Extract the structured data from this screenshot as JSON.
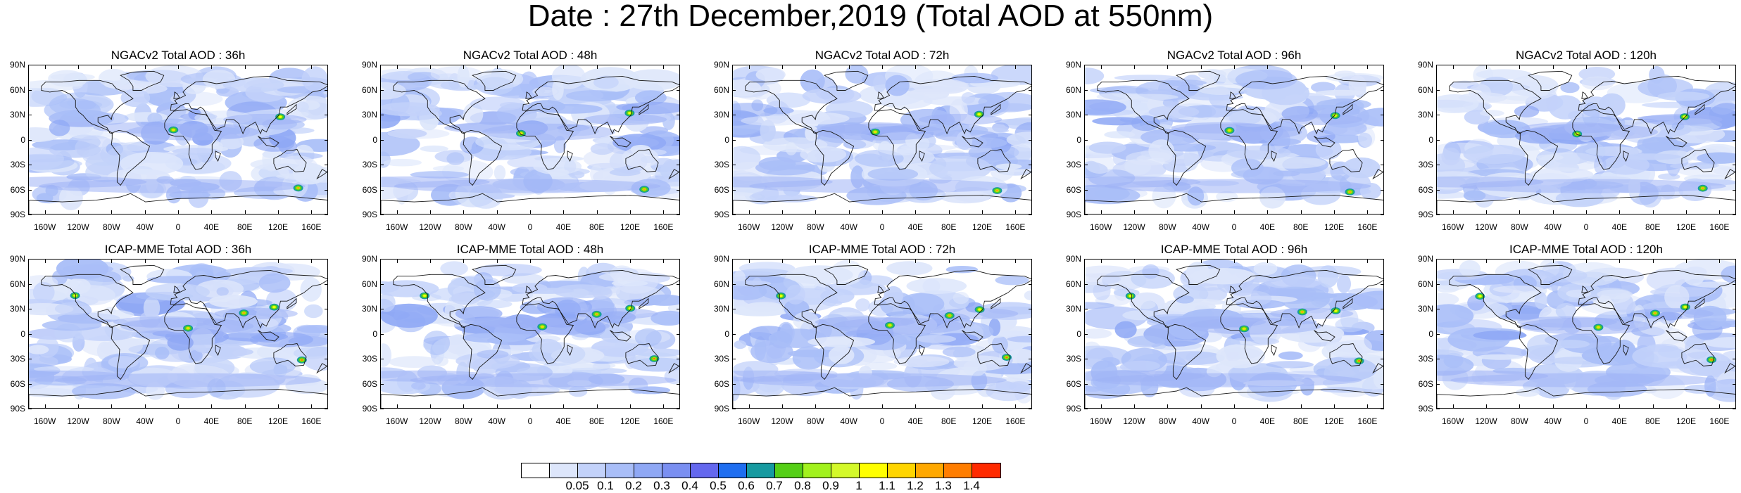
{
  "title": "Date : 27th December,2019 (Total AOD at 550nm)",
  "panels": [
    {
      "title": "NGACv2 Total AOD : 36h",
      "model": "NGACv2",
      "lead": "36h"
    },
    {
      "title": "NGACv2 Total AOD : 48h",
      "model": "NGACv2",
      "lead": "48h"
    },
    {
      "title": "NGACv2 Total AOD : 72h",
      "model": "NGACv2",
      "lead": "72h"
    },
    {
      "title": "NGACv2 Total AOD : 96h",
      "model": "NGACv2",
      "lead": "96h"
    },
    {
      "title": "NGACv2 Total AOD : 120h",
      "model": "NGACv2",
      "lead": "120h"
    },
    {
      "title": "ICAP-MME Total AOD : 36h",
      "model": "ICAP-MME",
      "lead": "36h"
    },
    {
      "title": "ICAP-MME Total AOD : 48h",
      "model": "ICAP-MME",
      "lead": "48h"
    },
    {
      "title": "ICAP-MME Total AOD : 72h",
      "model": "ICAP-MME",
      "lead": "72h"
    },
    {
      "title": "ICAP-MME Total AOD : 96h",
      "model": "ICAP-MME",
      "lead": "96h"
    },
    {
      "title": "ICAP-MME Total AOD : 120h",
      "model": "ICAP-MME",
      "lead": "120h"
    }
  ],
  "axes": {
    "lat_labels": [
      "90N",
      "60N",
      "30N",
      "0",
      "30S",
      "60S",
      "90S"
    ],
    "lon_labels": [
      "160W",
      "120W",
      "80W",
      "40W",
      "0",
      "40E",
      "80E",
      "120E",
      "160E"
    ],
    "lat_values": [
      90,
      60,
      30,
      0,
      -30,
      -60,
      -90
    ],
    "lon_values": [
      -160,
      -120,
      -80,
      -40,
      0,
      40,
      80,
      120,
      160
    ]
  },
  "colorbar": {
    "labels": [
      "0.05",
      "0.1",
      "0.2",
      "0.3",
      "0.4",
      "0.5",
      "0.6",
      "0.7",
      "0.8",
      "0.9",
      "1",
      "1.1",
      "1.2",
      "1.3",
      "1.4"
    ],
    "colors": [
      "#ffffff",
      "#dde6fb",
      "#c3d2fa",
      "#a9bef8",
      "#8fa8f5",
      "#7a8ff1",
      "#6468ee",
      "#1f6ef0",
      "#169aa0",
      "#55cf16",
      "#a2f21e",
      "#d4f92a",
      "#ffff00",
      "#ffd500",
      "#ffa800",
      "#ff7d00",
      "#ff2a00"
    ]
  },
  "style": {
    "background_blue": "#ccd7fb",
    "light_blue": "#b3c5f8",
    "mid_blue": "#93aaf5",
    "coast": "#1a1a1a"
  }
}
